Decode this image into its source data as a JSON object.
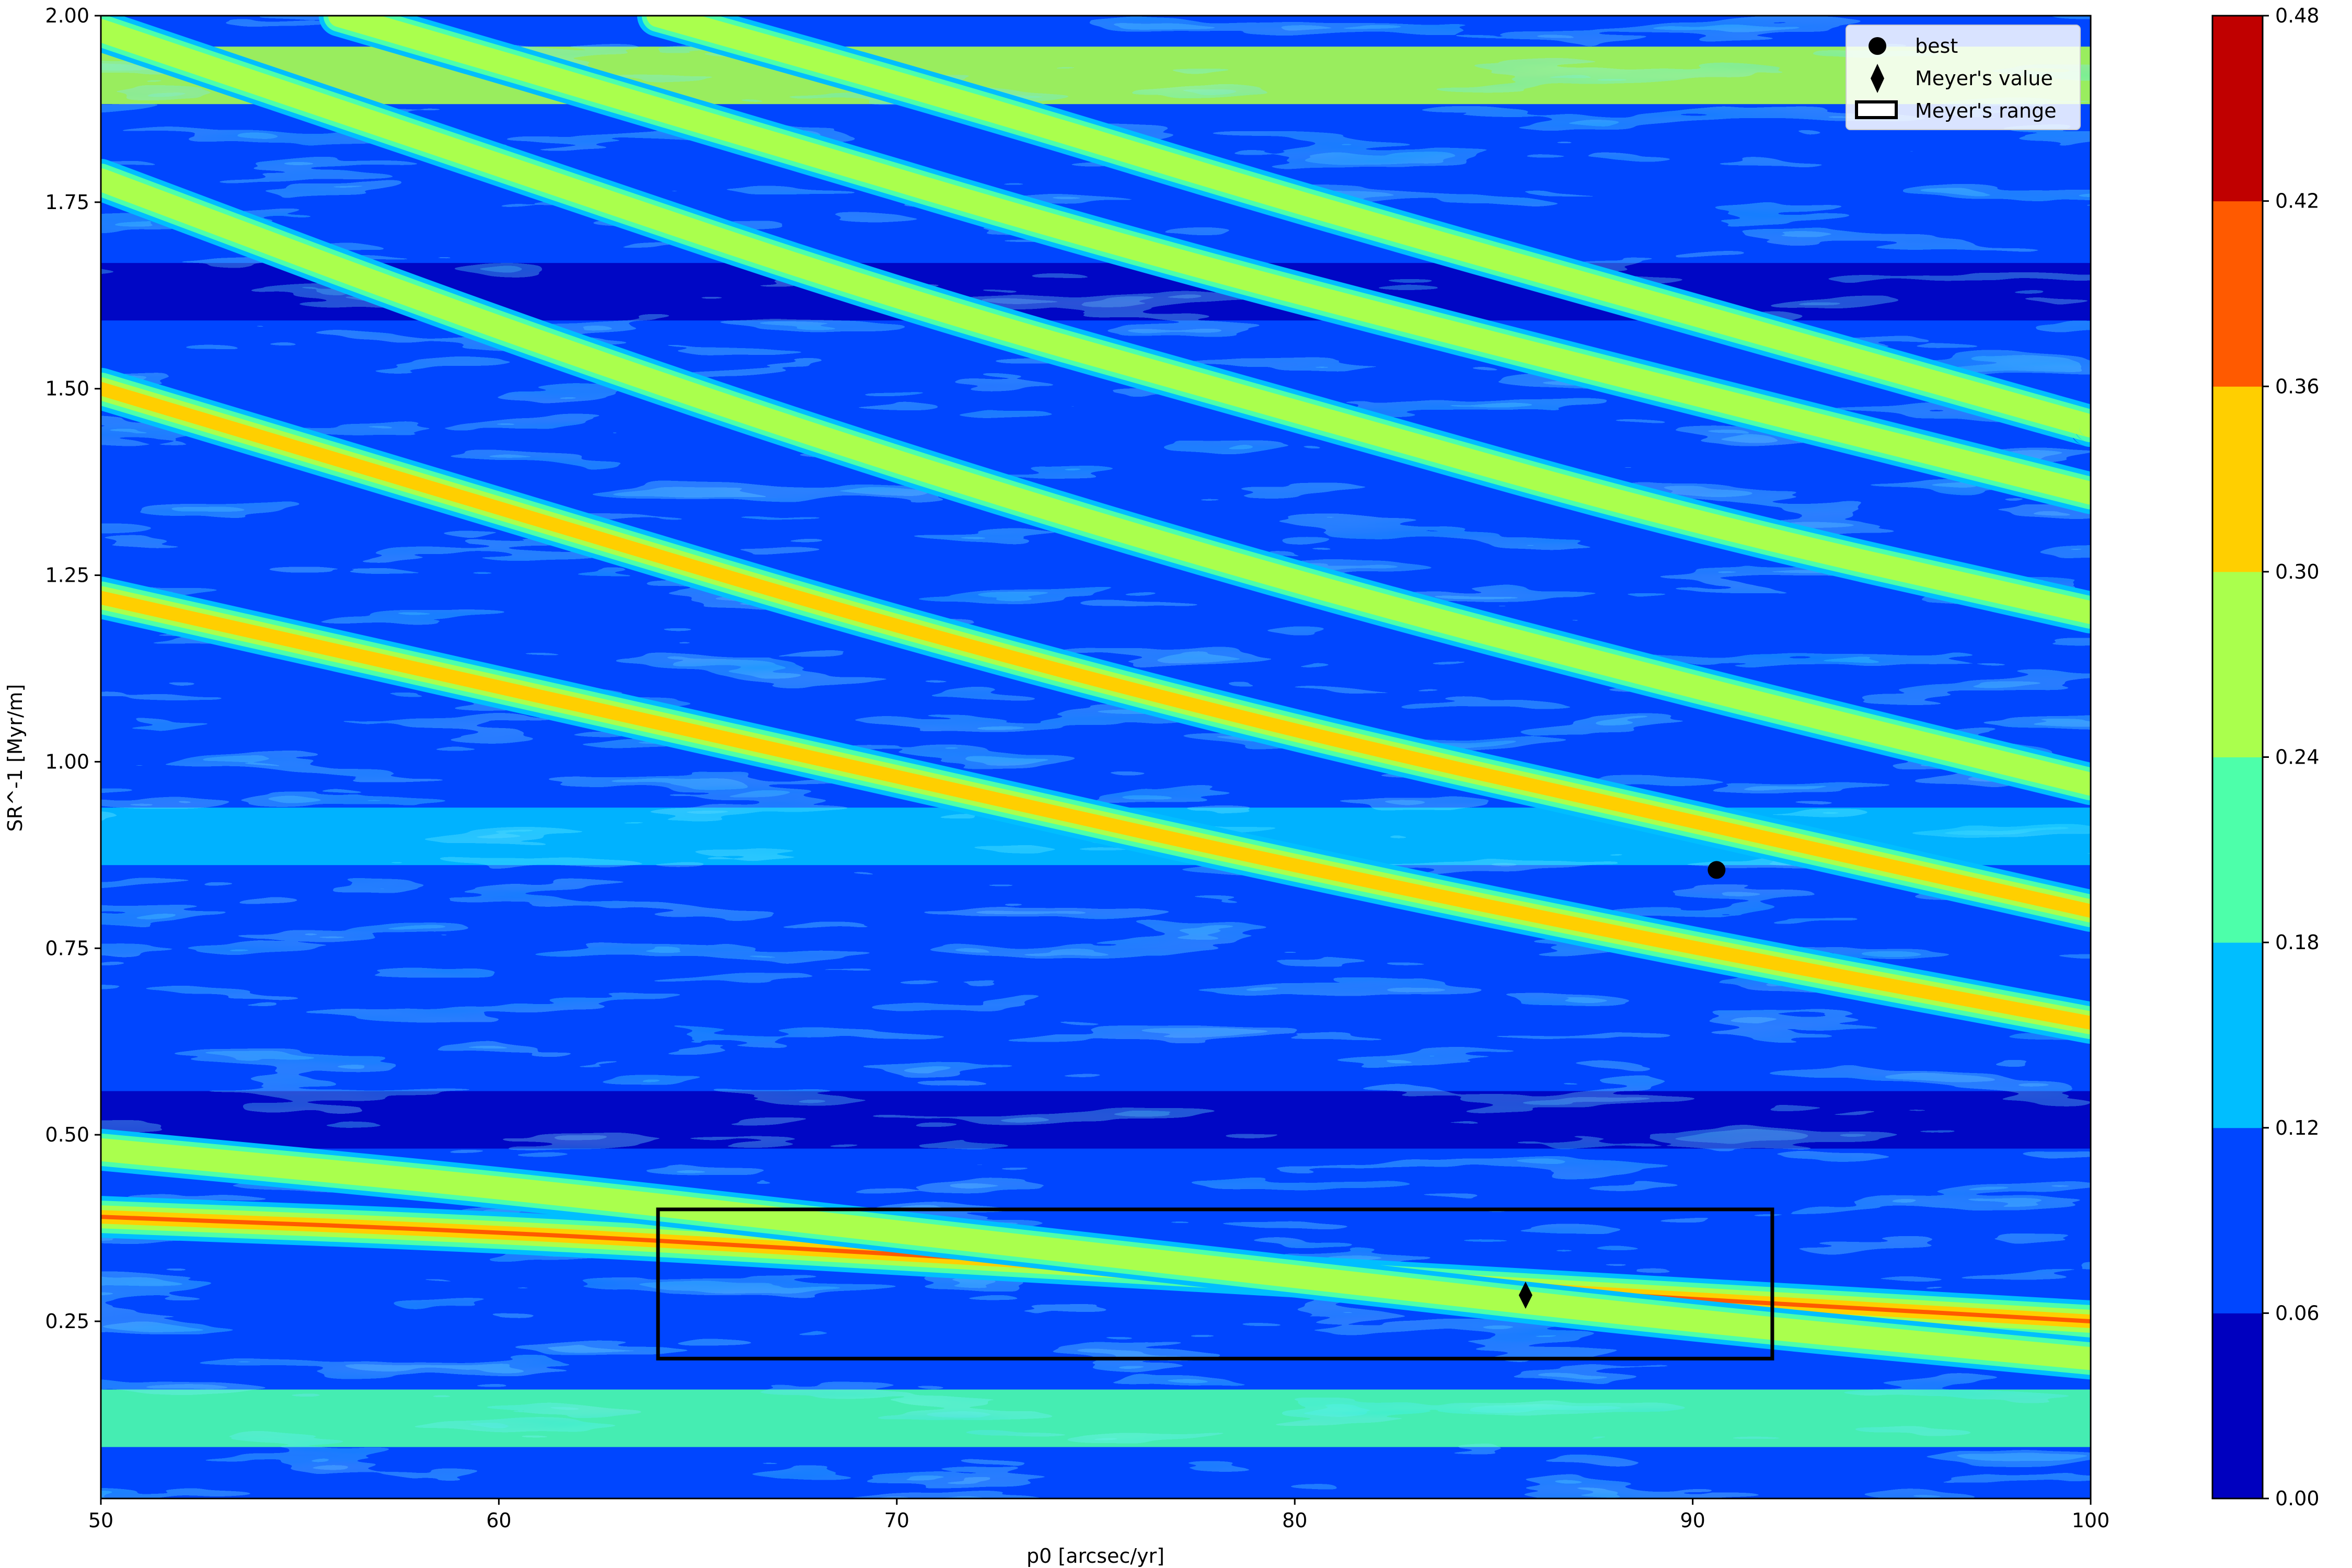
{
  "chart_data": {
    "type": "heatmap",
    "subtype": "filled-contour",
    "title": "",
    "xlabel": "p0 [arcsec/yr]",
    "ylabel": "SR^-1 [Myr/m]",
    "xlim": [
      50,
      100
    ],
    "ylim": [
      0.0125,
      2.0
    ],
    "x_ticks": [
      50,
      60,
      70,
      80,
      90,
      100
    ],
    "x_tick_labels": [
      "50",
      "60",
      "70",
      "80",
      "90",
      "100"
    ],
    "y_ticks": [
      0.25,
      0.5,
      0.75,
      1.0,
      1.25,
      1.5,
      1.75,
      2.0
    ],
    "y_tick_labels": [
      "0.25",
      "0.50",
      "0.75",
      "1.00",
      "1.25",
      "1.50",
      "1.75",
      "2.00"
    ],
    "grid": false,
    "colormap": "jet",
    "colorbar": {
      "levels": [
        0.0,
        0.06,
        0.12,
        0.18,
        0.24,
        0.3,
        0.36,
        0.42,
        0.48
      ],
      "tick_labels": [
        "0.00",
        "0.06",
        "0.12",
        "0.18",
        "0.24",
        "0.30",
        "0.36",
        "0.42",
        "0.48"
      ],
      "colors": [
        "#0000bf",
        "#0046ff",
        "#00beff",
        "#4dffaa",
        "#aaff4d",
        "#ffcf00",
        "#ff5a00",
        "#c00000"
      ]
    },
    "ridges": [
      {
        "p0": [
          50,
          60,
          70,
          80,
          90,
          100
        ],
        "sr_inv": [
          0.39,
          0.37,
          0.34,
          0.31,
          0.28,
          0.25
        ],
        "level": 0.4
      },
      {
        "p0": [
          50,
          60,
          70,
          80,
          90,
          100
        ],
        "sr_inv": [
          0.48,
          0.43,
          0.37,
          0.31,
          0.25,
          0.2
        ],
        "level": 0.3
      },
      {
        "p0": [
          50,
          60,
          70,
          80,
          90,
          100
        ],
        "sr_inv": [
          1.22,
          1.1,
          0.98,
          0.86,
          0.75,
          0.65
        ],
        "level": 0.32
      },
      {
        "p0": [
          50,
          60,
          70,
          80,
          90,
          100
        ],
        "sr_inv": [
          1.5,
          1.34,
          1.18,
          1.04,
          0.92,
          0.8
        ],
        "level": 0.34
      },
      {
        "p0": [
          50,
          60,
          70,
          80,
          90,
          100
        ],
        "sr_inv": [
          1.78,
          1.58,
          1.4,
          1.24,
          1.1,
          0.97
        ],
        "level": 0.26
      },
      {
        "p0": [
          50,
          60,
          70,
          80,
          90,
          100
        ],
        "sr_inv": [
          1.98,
          1.8,
          1.62,
          1.47,
          1.32,
          1.2
        ],
        "level": 0.26
      },
      {
        "p0": [
          56,
          65,
          75,
          85,
          100
        ],
        "sr_inv": [
          2.0,
          1.86,
          1.7,
          1.56,
          1.36
        ],
        "level": 0.27
      },
      {
        "p0": [
          64,
          72,
          80,
          90,
          100
        ],
        "sr_inv": [
          2.0,
          1.88,
          1.75,
          1.6,
          1.45
        ],
        "level": 0.26
      }
    ],
    "bands": [
      {
        "sr_inv": 1.92,
        "level": 0.27
      },
      {
        "sr_inv": 1.63,
        "level": 0.03
      },
      {
        "sr_inv": 0.9,
        "level": 0.15
      },
      {
        "sr_inv": 0.52,
        "level": 0.03
      },
      {
        "sr_inv": 0.12,
        "level": 0.22
      }
    ],
    "markers": [
      {
        "name": "best",
        "shape": "circle",
        "x": 90.6,
        "y": 0.855
      },
      {
        "name": "Meyer's value",
        "shape": "diamond",
        "x": 85.8,
        "y": 0.285
      }
    ],
    "rectangle": {
      "name": "Meyer's range",
      "x0": 64,
      "x1": 92,
      "y0": 0.2,
      "y1": 0.4
    },
    "legend": {
      "position": "top-right",
      "entries": [
        {
          "label": "best",
          "shape": "circle"
        },
        {
          "label": "Meyer's value",
          "shape": "diamond"
        },
        {
          "label": "Meyer's range",
          "shape": "rectangle"
        }
      ]
    }
  }
}
